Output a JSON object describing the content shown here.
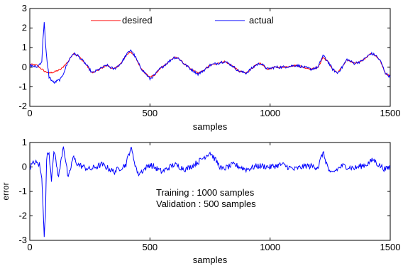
{
  "colors": {
    "desired": "#ff0000",
    "actual": "#0000ff",
    "error": "#0000ff",
    "axes": "#000000",
    "background": "#ffffff"
  },
  "chart_data": [
    {
      "type": "line",
      "title": "",
      "xlabel": "samples",
      "ylabel": "",
      "xlim": [
        0,
        1500
      ],
      "ylim": [
        -2,
        3
      ],
      "xticks": [
        "0",
        "500",
        "1000",
        "1500"
      ],
      "yticks": [
        "-2",
        "-1",
        "0",
        "1",
        "2",
        "3"
      ],
      "grid": false,
      "legend_position": "top",
      "series": [
        {
          "name": "desired",
          "color": "#ff0000",
          "x": [
            0,
            30,
            60,
            80,
            100,
            130,
            160,
            180,
            200,
            230,
            260,
            290,
            320,
            350,
            380,
            400,
            420,
            440,
            460,
            480,
            500,
            520,
            540,
            570,
            600,
            620,
            640,
            670,
            700,
            720,
            750,
            780,
            810,
            840,
            870,
            900,
            920,
            940,
            960,
            990,
            1020,
            1050,
            1080,
            1110,
            1140,
            1170,
            1200,
            1220,
            1240,
            1260,
            1280,
            1300,
            1320,
            1350,
            1380,
            1400,
            1420,
            1440,
            1460,
            1480,
            1500
          ],
          "y": [
            0.15,
            0.1,
            -0.2,
            -0.3,
            -0.25,
            -0.1,
            0.3,
            0.7,
            0.6,
            0.2,
            -0.3,
            -0.1,
            0.1,
            -0.1,
            0.2,
            0.6,
            0.8,
            0.5,
            0.0,
            -0.3,
            -0.5,
            -0.4,
            -0.1,
            0.2,
            0.5,
            0.45,
            0.2,
            -0.1,
            -0.3,
            -0.2,
            0.1,
            0.2,
            0.3,
            0.1,
            -0.2,
            -0.3,
            -0.1,
            0.1,
            0.2,
            -0.1,
            0.0,
            0.0,
            0.05,
            0.1,
            0.0,
            -0.1,
            0.0,
            0.5,
            0.3,
            -0.1,
            -0.3,
            0.0,
            0.4,
            0.2,
            0.3,
            0.5,
            0.7,
            0.6,
            0.3,
            -0.3,
            -0.5
          ]
        },
        {
          "name": "actual",
          "color": "#0000ff",
          "x": [
            0,
            30,
            50,
            55,
            60,
            65,
            70,
            80,
            100,
            130,
            160,
            180,
            200,
            230,
            260,
            290,
            320,
            350,
            380,
            400,
            420,
            440,
            460,
            480,
            500,
            520,
            540,
            570,
            600,
            620,
            640,
            670,
            700,
            720,
            750,
            780,
            810,
            840,
            870,
            900,
            920,
            940,
            960,
            990,
            1020,
            1050,
            1080,
            1110,
            1140,
            1170,
            1200,
            1220,
            1240,
            1260,
            1280,
            1300,
            1320,
            1350,
            1380,
            1400,
            1420,
            1440,
            1460,
            1480,
            1500
          ],
          "y": [
            0.1,
            0.0,
            0.3,
            1.5,
            2.3,
            1.2,
            0.5,
            -0.5,
            -0.8,
            -0.6,
            0.3,
            0.7,
            0.6,
            0.2,
            -0.3,
            -0.1,
            0.1,
            -0.1,
            0.2,
            0.6,
            0.9,
            0.5,
            0.0,
            -0.3,
            -0.6,
            -0.4,
            -0.1,
            0.2,
            0.5,
            0.45,
            0.2,
            -0.1,
            -0.35,
            -0.2,
            0.1,
            0.2,
            0.3,
            0.1,
            -0.2,
            -0.3,
            -0.1,
            0.1,
            0.2,
            -0.1,
            0.0,
            0.0,
            0.05,
            0.1,
            0.0,
            -0.1,
            0.0,
            0.6,
            0.3,
            -0.1,
            -0.3,
            0.0,
            0.4,
            0.2,
            0.3,
            0.5,
            0.7,
            0.6,
            0.3,
            -0.3,
            -0.5
          ]
        }
      ]
    },
    {
      "type": "line",
      "title": "",
      "xlabel": "samples",
      "ylabel": "error",
      "xlim": [
        0,
        1500
      ],
      "ylim": [
        -3,
        1
      ],
      "xticks": [
        "0",
        "500",
        "1000",
        "1500"
      ],
      "yticks": [
        "-3",
        "-2",
        "-1",
        "0",
        "1"
      ],
      "grid": false,
      "annotations": [
        "Training : 1000 samples",
        "Validation : 500 samples"
      ],
      "series": [
        {
          "color": "#0000ff",
          "x": [
            0,
            20,
            40,
            50,
            55,
            60,
            65,
            70,
            80,
            90,
            100,
            120,
            140,
            160,
            180,
            200,
            250,
            300,
            350,
            400,
            420,
            450,
            500,
            550,
            600,
            650,
            700,
            750,
            800,
            850,
            900,
            950,
            1000,
            1050,
            1100,
            1150,
            1200,
            1220,
            1250,
            1300,
            1350,
            1400,
            1430,
            1450,
            1480,
            1500
          ],
          "y": [
            0.0,
            0.2,
            0.1,
            -0.5,
            -1.5,
            -2.8,
            -2.0,
            0.4,
            0.6,
            -0.5,
            0.7,
            -0.4,
            0.9,
            -0.5,
            0.4,
            0.1,
            -0.1,
            0.1,
            -0.2,
            0.1,
            0.8,
            -0.3,
            0.1,
            -0.2,
            0.1,
            -0.1,
            0.2,
            0.6,
            -0.1,
            0.1,
            -0.1,
            0.05,
            0.0,
            0.1,
            -0.1,
            0.05,
            0.0,
            0.6,
            -0.3,
            0.05,
            -0.05,
            0.1,
            0.3,
            0.1,
            -0.1,
            0.0
          ]
        }
      ]
    }
  ]
}
